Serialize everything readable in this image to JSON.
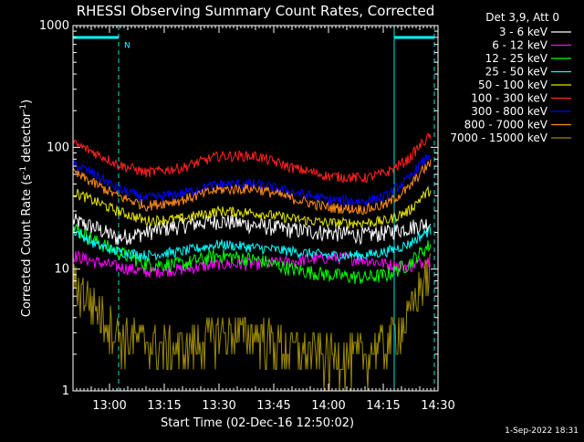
{
  "title": "RHESSI Observing Summary Count Rates, Corrected",
  "timestamp": "1-Sep-2022 18:31",
  "colors": {
    "background": "#000000",
    "axes": "#ffffff",
    "night_marker": "#00e5e5",
    "night_flag": "#00ffff"
  },
  "chart_data": {
    "type": "line",
    "title": "RHESSI Observing Summary Count Rates, Corrected",
    "xlabel": "Start Time (02-Dec-16 12:50:02)",
    "ylabel": "Corrected Count Rate (s-1 detector-1)",
    "ylabel_parts": {
      "a": "Corrected Count Rate (s",
      "b": "-1",
      "c": " detector",
      "d": "-1",
      "e": ")"
    },
    "x_unit": "minutes after 12:50:02",
    "xlim": [
      0,
      100
    ],
    "ylim": [
      1,
      1000
    ],
    "yscale": "log",
    "grid": false,
    "legend_position": "top-right",
    "legend_title": "Det 3,9, Att 0",
    "x_ticks": [
      {
        "value": 10,
        "label": "13:00"
      },
      {
        "value": 25,
        "label": "13:15"
      },
      {
        "value": 40,
        "label": "13:30"
      },
      {
        "value": 55,
        "label": "13:45"
      },
      {
        "value": 70,
        "label": "14:00"
      },
      {
        "value": 85,
        "label": "14:15"
      },
      {
        "value": 100,
        "label": "14:30"
      }
    ],
    "y_ticks": [
      {
        "value": 1,
        "label": "1"
      },
      {
        "value": 10,
        "label": "10"
      },
      {
        "value": 100,
        "label": "100"
      },
      {
        "value": 1000,
        "label": "1000"
      }
    ],
    "annotations": [
      {
        "text": "N",
        "x": 12.5,
        "y": 700
      }
    ],
    "night_intervals": [
      [
        0,
        12.5
      ],
      [
        88,
        99
      ]
    ],
    "series": [
      {
        "name": "3 - 6 keV",
        "color": "#ffffff",
        "x": [
          0,
          6,
          12,
          20,
          30,
          40,
          50,
          60,
          70,
          80,
          86,
          92,
          98
        ],
        "y": [
          25,
          22,
          18,
          20,
          23,
          25,
          23,
          21,
          20,
          19,
          20,
          22,
          24
        ]
      },
      {
        "name": "6 - 12 keV",
        "color": "#ff00ff",
        "x": [
          0,
          6,
          12,
          20,
          30,
          40,
          50,
          60,
          70,
          80,
          86,
          92,
          98
        ],
        "y": [
          13,
          11.5,
          10.5,
          9.5,
          10,
          11,
          11,
          11.5,
          12.5,
          12,
          11,
          10.5,
          12
        ]
      },
      {
        "name": "12 - 25 keV",
        "color": "#00ff00",
        "x": [
          0,
          6,
          12,
          20,
          30,
          40,
          50,
          60,
          70,
          80,
          86,
          92,
          98
        ],
        "y": [
          22,
          17,
          14,
          11,
          11,
          13,
          12,
          10,
          9,
          8.5,
          9,
          11,
          16
        ]
      },
      {
        "name": "25 - 50 keV",
        "color": "#00ffff",
        "x": [
          0,
          6,
          12,
          20,
          30,
          40,
          50,
          60,
          70,
          80,
          86,
          92,
          98
        ],
        "y": [
          21,
          16,
          14,
          13,
          14,
          16,
          15,
          14,
          13,
          13,
          14,
          16,
          21
        ]
      },
      {
        "name": "50 - 100 keV",
        "color": "#e6e600",
        "x": [
          0,
          6,
          12,
          20,
          30,
          40,
          50,
          60,
          70,
          80,
          86,
          92,
          98
        ],
        "y": [
          43,
          36,
          30,
          25,
          26,
          30,
          29,
          26,
          24,
          24,
          25,
          30,
          45
        ]
      },
      {
        "name": "100 - 300 keV",
        "color": "#ff2020",
        "x": [
          0,
          6,
          12,
          20,
          30,
          40,
          50,
          60,
          70,
          80,
          86,
          92,
          98
        ],
        "y": [
          108,
          90,
          73,
          62,
          68,
          85,
          85,
          68,
          58,
          56,
          62,
          80,
          125
        ]
      },
      {
        "name": "300 - 800 keV",
        "color": "#0000ff",
        "x": [
          0,
          6,
          12,
          20,
          30,
          40,
          50,
          60,
          70,
          80,
          86,
          92,
          98
        ],
        "y": [
          73,
          60,
          46,
          38,
          42,
          50,
          50,
          43,
          37,
          36,
          40,
          55,
          88
        ]
      },
      {
        "name": "800 - 7000 keV",
        "color": "#ff8c1a",
        "x": [
          0,
          6,
          12,
          20,
          30,
          40,
          50,
          60,
          70,
          80,
          86,
          92,
          98
        ],
        "y": [
          62,
          50,
          40,
          33,
          37,
          45,
          46,
          38,
          32,
          31,
          34,
          46,
          75
        ]
      },
      {
        "name": "7000 - 15000 keV",
        "color": "#9b8a00",
        "x": [
          0,
          6,
          12,
          20,
          30,
          40,
          50,
          60,
          70,
          80,
          86,
          92,
          98
        ],
        "y": [
          8,
          5,
          3,
          2.5,
          2.2,
          3,
          3,
          2.2,
          2,
          2,
          2.5,
          4,
          10
        ]
      }
    ]
  }
}
